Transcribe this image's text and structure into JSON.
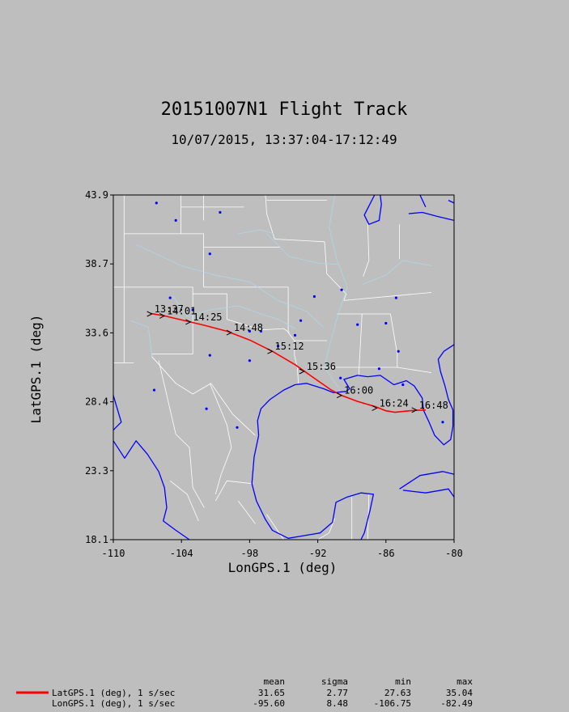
{
  "chart_data": {
    "type": "line",
    "title": "20151007N1 Flight Track",
    "subtitle": "10/07/2015, 13:37:04-17:12:49",
    "xlabel": "LonGPS.1 (deg)",
    "ylabel": "LatGPS.1 (deg)",
    "xlim": [
      -110,
      -80
    ],
    "ylim": [
      18.1,
      43.9
    ],
    "xticks": [
      "-110",
      "-104",
      "-98",
      "-92",
      "-86",
      "-80"
    ],
    "yticks": [
      "18.1",
      "23.3",
      "28.4",
      "33.6",
      "38.7",
      "43.9"
    ],
    "background": "map",
    "series": [
      {
        "name": "LatGPS.1 (deg), 1 s/sec",
        "color": "#ff0000",
        "points": [
          [
            -106.75,
            35.04
          ],
          [
            -105.5,
            34.85
          ],
          [
            -104.0,
            34.55
          ],
          [
            -102.0,
            34.15
          ],
          [
            -100.0,
            33.7
          ],
          [
            -98.0,
            33.05
          ],
          [
            -96.0,
            32.2
          ],
          [
            -94.0,
            31.2
          ],
          [
            -92.0,
            30.0
          ],
          [
            -90.8,
            29.3
          ],
          [
            -89.9,
            28.9
          ],
          [
            -88.5,
            28.45
          ],
          [
            -86.9,
            28.05
          ],
          [
            -86.0,
            27.75
          ],
          [
            -85.2,
            27.63
          ],
          [
            -84.3,
            27.72
          ],
          [
            -83.5,
            27.78
          ],
          [
            -82.49,
            27.8
          ]
        ]
      }
    ],
    "time_labels": [
      {
        "label": "13:37",
        "lon": -106.6,
        "lat": 35.0
      },
      {
        "label": "14:01",
        "lon": -105.5,
        "lat": 34.85
      },
      {
        "label": "14:25",
        "lon": -103.2,
        "lat": 34.4
      },
      {
        "label": "14:48",
        "lon": -99.6,
        "lat": 33.6
      },
      {
        "label": "15:12",
        "lon": -96.0,
        "lat": 32.2
      },
      {
        "label": "15:36",
        "lon": -93.2,
        "lat": 30.7
      },
      {
        "label": "16:00",
        "lon": -89.9,
        "lat": 28.9
      },
      {
        "label": "16:24",
        "lon": -86.8,
        "lat": 27.95
      },
      {
        "label": "16:48",
        "lon": -83.3,
        "lat": 27.8
      }
    ],
    "stats": {
      "headers": [
        "mean",
        "sigma",
        "min",
        "max"
      ],
      "rows": [
        {
          "name": "LatGPS.1 (deg), 1 s/sec",
          "color": "#ff0000",
          "values": [
            "31.65",
            "2.77",
            "27.63",
            "35.04"
          ]
        },
        {
          "name": "LonGPS.1 (deg), 1 s/sec",
          "color": "",
          "values": [
            "-95.60",
            "8.48",
            "-106.75",
            "-82.49"
          ]
        }
      ]
    },
    "colors": {
      "coast": "#0000ff",
      "borders": "#ffffff",
      "rivers": "#add8e6",
      "track": "#ff0000"
    }
  }
}
